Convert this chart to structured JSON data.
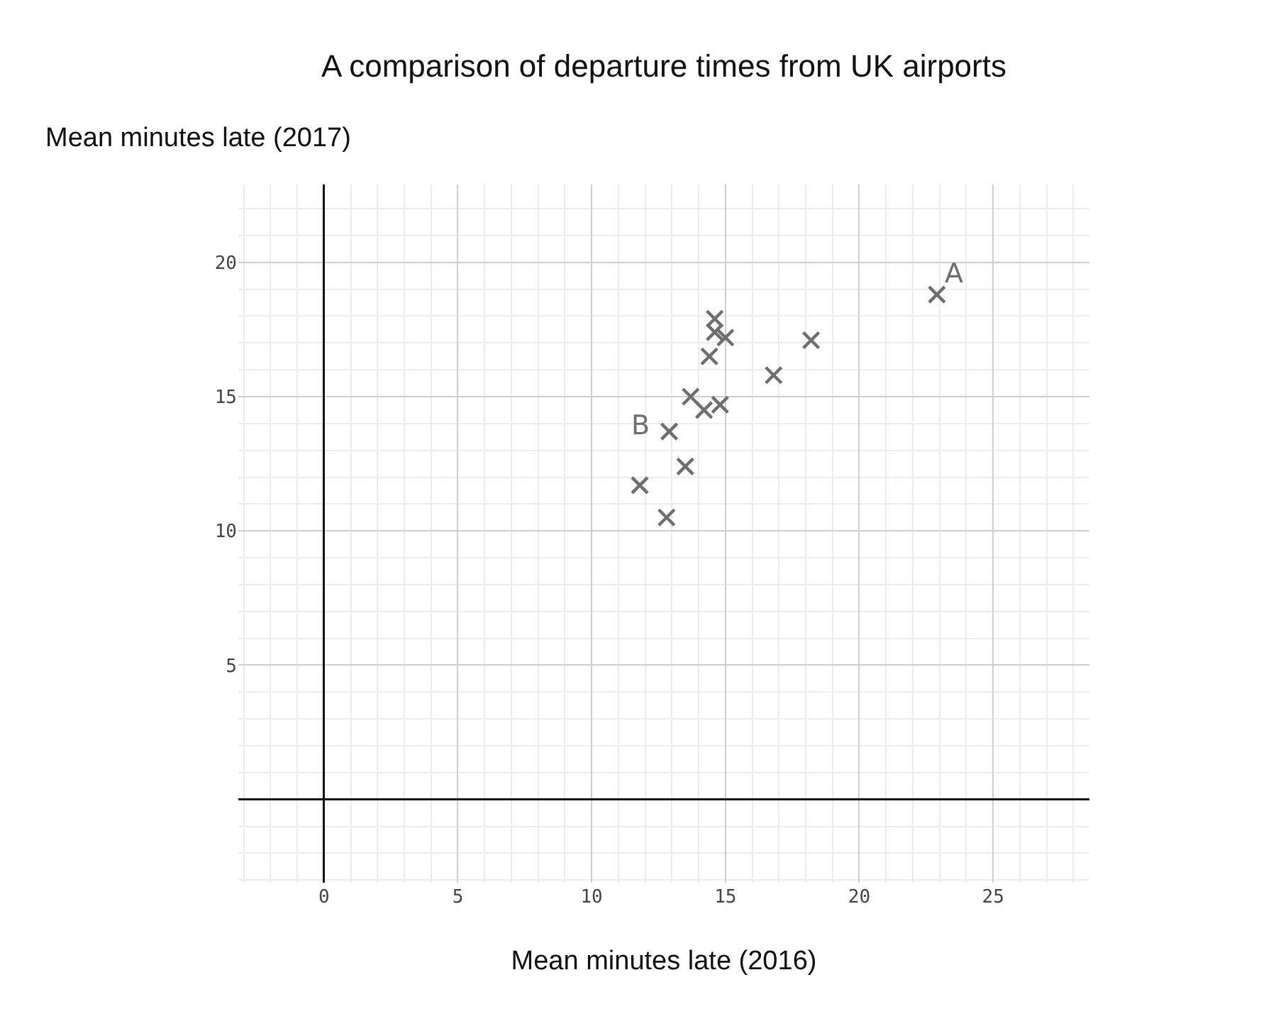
{
  "chart_data": {
    "type": "scatter",
    "title": "A comparison of departure times from UK airports",
    "xlabel": "Mean minutes late (2016)",
    "ylabel": "Mean minutes late (2017)",
    "x": [
      22.9,
      18.2,
      16.8,
      14.6,
      14.6,
      15.0,
      14.4,
      13.7,
      14.2,
      14.8,
      12.9,
      13.5,
      11.8,
      12.8
    ],
    "values": [
      18.8,
      17.1,
      15.8,
      17.9,
      17.4,
      17.2,
      16.5,
      15.0,
      14.5,
      14.7,
      13.7,
      12.4,
      11.7,
      10.5
    ],
    "color": "#6e6e6e",
    "marker": "cross",
    "annotations": [
      {
        "text": "A",
        "x": 22.9,
        "y": 18.8
      },
      {
        "text": "B",
        "x": 12.9,
        "y": 13.7
      }
    ],
    "xlim": [
      -3.2,
      28.6
    ],
    "ylim": [
      -3.1,
      22.9
    ],
    "xticks": [
      0,
      5,
      10,
      15,
      20,
      25
    ],
    "yticks": [
      5,
      10,
      15,
      20
    ],
    "grid": true
  }
}
